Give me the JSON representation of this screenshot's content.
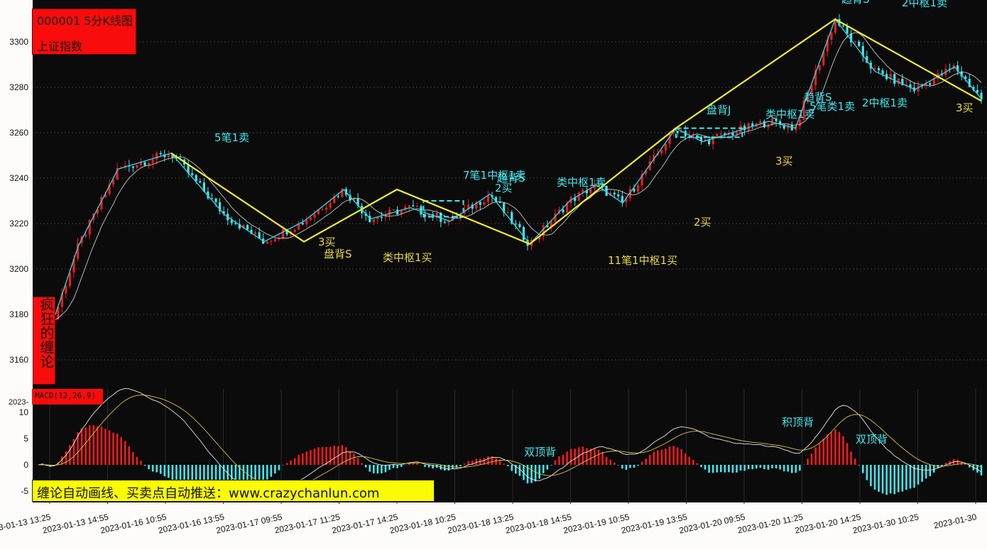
{
  "title_box": {
    "line1": "000001 5分K线图",
    "line2": "上证指数"
  },
  "side_box": {
    "text": "疯狂的缠论"
  },
  "macd_box": {
    "label": "MACD(12,26,9)"
  },
  "promo": {
    "text": "缠论自动画线、买卖点自动推送：www.crazychanlun.com"
  },
  "stray_label": "2023-",
  "colors": {
    "background": "#0b0b0b",
    "bi_line": "#2ecfe0",
    "segment_line": "#f0ee2c",
    "up_bar": "#f11b1b",
    "down_bar": "#3fe8ee",
    "dif": "#e6e6e6",
    "dea": "#d9c23a",
    "anno_cyan": "#3fe8ee",
    "anno_yellow": "#e8d84a"
  },
  "chart_data": [
    {
      "type": "candlestick",
      "yticks": [
        3160,
        3180,
        3200,
        3220,
        3240,
        3260,
        3280,
        3300
      ],
      "ylim": [
        3144,
        3318
      ],
      "xticks": [
        "2023-01-13 13:25",
        "2023-01-13 14:55",
        "2023-01-16 10:55",
        "2023-01-16 13:55",
        "2023-01-17 09:55",
        "2023-01-17 11:25",
        "2023-01-17 14:25",
        "2023-01-18 10:25",
        "2023-01-18 13:25",
        "2023-01-18 14:55",
        "2023-01-19 10:55",
        "2023-01-19 13:55",
        "2023-01-20 09:55",
        "2023-01-20 11:25",
        "2023-01-20 14:25",
        "2023-01-30 10:25",
        "2023-01-30"
      ],
      "bi_line": [
        [
          0,
          3180
        ],
        [
          1,
          3175
        ],
        [
          3,
          3210
        ],
        [
          6,
          3244
        ],
        [
          10,
          3251
        ],
        [
          14,
          3224
        ],
        [
          17,
          3212
        ],
        [
          20,
          3221
        ],
        [
          23,
          3235
        ],
        [
          25,
          3222
        ],
        [
          28,
          3227
        ],
        [
          31,
          3221
        ],
        [
          34,
          3233
        ],
        [
          37,
          3211
        ],
        [
          40,
          3230
        ],
        [
          42,
          3237
        ],
        [
          44,
          3229
        ],
        [
          48,
          3262
        ],
        [
          50,
          3256
        ],
        [
          55,
          3265
        ],
        [
          57,
          3262
        ],
        [
          60,
          3310
        ],
        [
          63,
          3287
        ],
        [
          66,
          3279
        ],
        [
          69,
          3289
        ],
        [
          71,
          3275
        ]
      ],
      "segment_line": [
        [
          10,
          3251
        ],
        [
          20,
          3212
        ],
        [
          27,
          3235
        ],
        [
          37,
          3211
        ],
        [
          48,
          3262
        ],
        [
          60,
          3310
        ],
        [
          71,
          3274
        ]
      ],
      "zhongshu_boxes": [
        {
          "from": 29,
          "to": 32,
          "low": 3223,
          "high": 3230
        },
        {
          "from": 48,
          "to": 53,
          "low": 3258,
          "high": 3262
        }
      ],
      "annotations": [
        {
          "text": "5笔1卖",
          "color": "cyan"
        },
        {
          "text": "3买",
          "color": "yellow"
        },
        {
          "text": "盘背S",
          "color": "yellow"
        },
        {
          "text": "类中枢1买",
          "color": "yellow"
        },
        {
          "text": "7笔1中枢1卖",
          "color": "cyan"
        },
        {
          "text": "趋背S",
          "color": "cyan"
        },
        {
          "text": "2买",
          "color": "cyan"
        },
        {
          "text": "类中枢1卖",
          "color": "cyan"
        },
        {
          "text": "11笔1中枢1买",
          "color": "yellow"
        },
        {
          "text": "2买",
          "color": "yellow"
        },
        {
          "text": "盘背J",
          "color": "cyan"
        },
        {
          "text": "类中枢1卖",
          "color": "cyan"
        },
        {
          "text": "3买",
          "color": "yellow"
        },
        {
          "text": "趋背S",
          "color": "cyan"
        },
        {
          "text": "5笔类1卖",
          "color": "cyan"
        },
        {
          "text": "2中枢1卖",
          "color": "cyan"
        },
        {
          "text": "趋背S",
          "color": "cyan"
        },
        {
          "text": "2中枢1卖",
          "color": "cyan"
        },
        {
          "text": "3买",
          "color": "yellow"
        }
      ]
    },
    {
      "type": "macd",
      "title": "MACD(12,26,9)",
      "yticks": [
        10,
        5,
        0,
        -5
      ],
      "ylim": [
        -7.5,
        13
      ],
      "annotations": [
        {
          "text": "积顶背",
          "color": "cyan"
        },
        {
          "text": "双顶背",
          "color": "cyan"
        },
        {
          "text": "双顶背",
          "color": "cyan"
        }
      ]
    }
  ]
}
